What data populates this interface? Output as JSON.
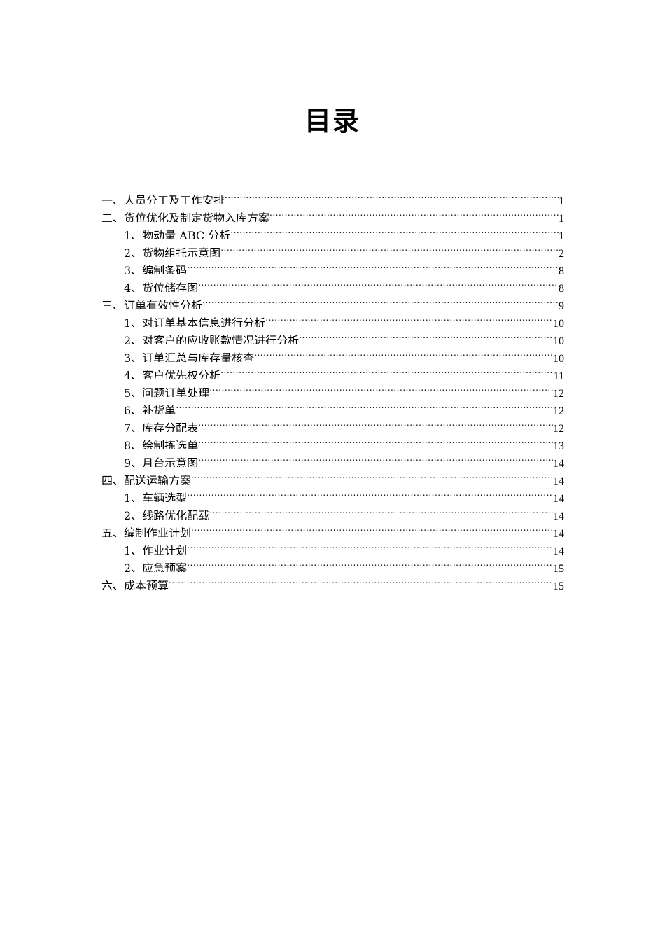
{
  "title": "目录",
  "toc": [
    {
      "label": "一、人员分工及工作安排",
      "page": "1",
      "level": 1
    },
    {
      "label": "二、货位优化及制定货物入库方案",
      "page": "1",
      "level": 1
    },
    {
      "label": "1、物动量 ABC 分析",
      "page": "1",
      "level": 2
    },
    {
      "label": "2、货物组托示意图",
      "page": "2",
      "level": 2
    },
    {
      "label": "3、编制条码",
      "page": "8",
      "level": 2
    },
    {
      "label": "4、货位储存图",
      "page": "8",
      "level": 2
    },
    {
      "label": "三、订单有效性分析",
      "page": "9",
      "level": 1
    },
    {
      "label": "1、对订单基本信息进行分析",
      "page": "10",
      "level": 2
    },
    {
      "label": "2、对客户的应收账款情况进行分析",
      "page": "10",
      "level": 2
    },
    {
      "label": "3、订单汇总与库存量核查",
      "page": "10",
      "level": 2
    },
    {
      "label": "4、客户优先权分析",
      "page": "11",
      "level": 2
    },
    {
      "label": "5、问题订单处理",
      "page": "12",
      "level": 2
    },
    {
      "label": "6、补货单",
      "page": "12",
      "level": 2
    },
    {
      "label": "7、库存分配表",
      "page": "12",
      "level": 2
    },
    {
      "label": "8、绘制拣选单",
      "page": "13",
      "level": 2
    },
    {
      "label": "9、月台示意图",
      "page": "14",
      "level": 2
    },
    {
      "label": "四、配送运输方案",
      "page": "14",
      "level": 1
    },
    {
      "label": "1、车辆选型",
      "page": "14",
      "level": 2
    },
    {
      "label": "2、线路优化配载",
      "page": "14",
      "level": 2
    },
    {
      "label": "五、编制作业计划",
      "page": "14",
      "level": 1
    },
    {
      "label": "1、作业计划",
      "page": "14",
      "level": 2
    },
    {
      "label": "2、应急预案",
      "page": "15",
      "level": 2
    },
    {
      "label": "六、成本预算",
      "page": "15",
      "level": 1
    }
  ]
}
